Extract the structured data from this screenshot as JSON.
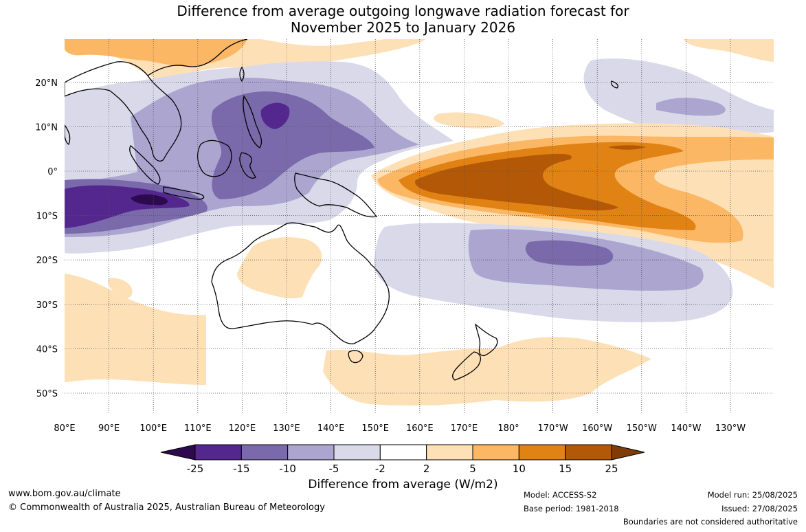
{
  "title": {
    "line1": "Difference from average outgoing longwave radiation forecast for",
    "line2": "November 2025 to January 2026"
  },
  "map": {
    "lon_labels": [
      "80°E",
      "90°E",
      "100°E",
      "110°E",
      "120°E",
      "130°E",
      "140°E",
      "150°E",
      "160°E",
      "170°E",
      "180°",
      "170°W",
      "160°W",
      "150°W",
      "140°W",
      "130°W"
    ],
    "lat_labels": [
      "20°N",
      "10°N",
      "0°",
      "10°S",
      "20°S",
      "30°S",
      "40°S",
      "50°S"
    ],
    "gridlines": true
  },
  "colorbar": {
    "title": "Difference from average (W/m2)",
    "ticks": [
      "-25",
      "-15",
      "-10",
      "-5",
      "-2",
      "2",
      "5",
      "10",
      "15",
      "25"
    ],
    "colors": {
      "below_min": "#2d0a4e",
      "c1": "#54278f",
      "c2": "#7a6aab",
      "c3": "#aba5d0",
      "c4": "#d9d9ea",
      "c5": "#ffffff",
      "c6": "#fee0b6",
      "c7": "#fbb763",
      "c8": "#e08214",
      "c9": "#b35806",
      "above_max": "#7f3b08"
    }
  },
  "footer": {
    "url": "www.bom.gov.au/climate",
    "copyright": "© Commonwealth of Australia 2025, Australian Bureau of Meteorology",
    "model": "Model: ACCESS-S2",
    "base_period": "Base period: 1981-2018",
    "model_run": "Model run: 25/08/2025",
    "issued": "Issued: 27/08/2025",
    "disclaimer": "Boundaries are not considered authoritative"
  }
}
